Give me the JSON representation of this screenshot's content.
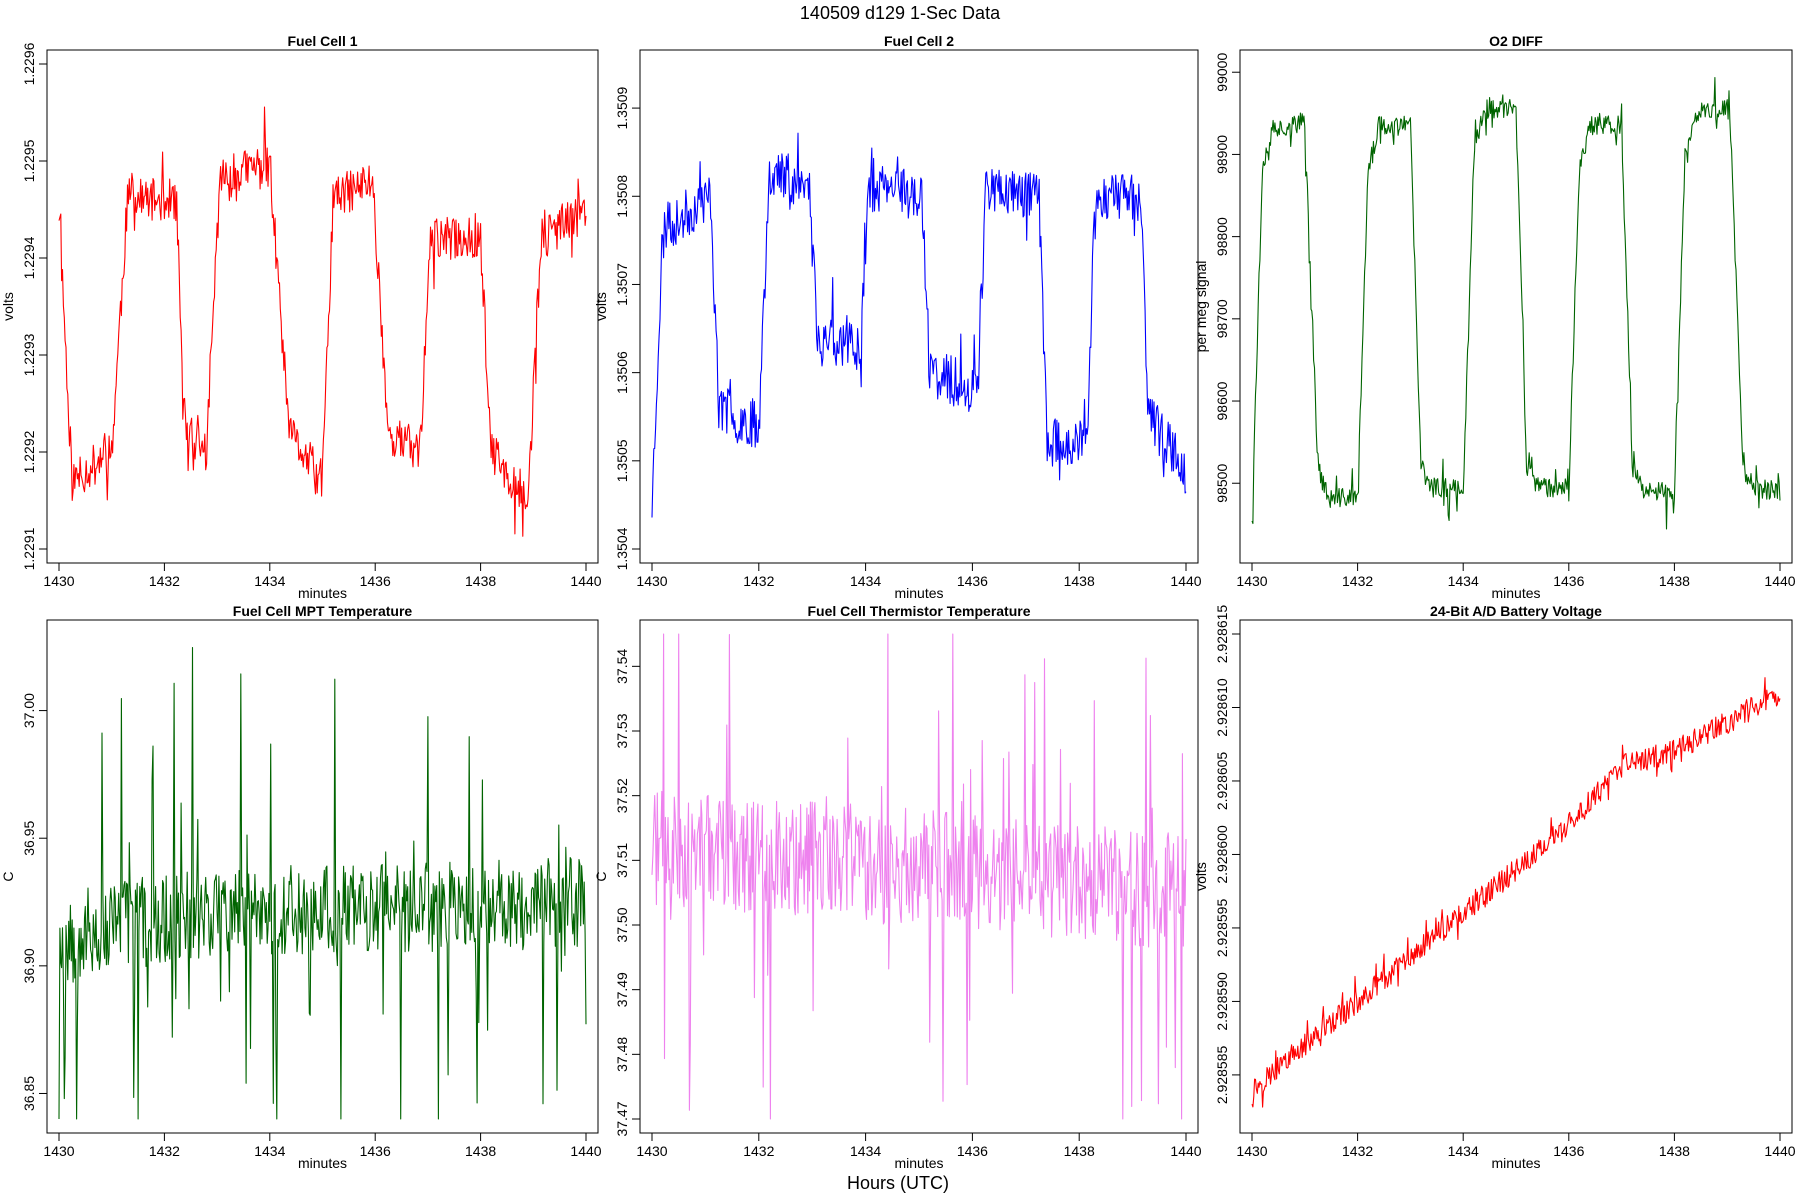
{
  "title": "140509   d129   1-Sec Data",
  "footer_xlabel": "Hours (UTC)",
  "colors": {
    "red": "#ff0000",
    "blue": "#0000ff",
    "green": "#006400",
    "violet": "#ee82ee"
  },
  "chart_data": [
    {
      "type": "line",
      "title": "Fuel Cell 1",
      "xlabel": "minutes",
      "ylabel": "volts",
      "xlim": [
        1430,
        1440
      ],
      "ylim": [
        1.2291,
        1.2296
      ],
      "xticks": [
        1430,
        1432,
        1434,
        1436,
        1438,
        1440
      ],
      "yticks": [
        "1.2291",
        "1.2292",
        "1.2293",
        "1.2294",
        "1.2295",
        "1.2296"
      ],
      "color": "#ff0000",
      "seed": 11,
      "noise": 2.2e-05,
      "spike": 2e-05,
      "levels": [
        [
          1430.0,
          1.22945
        ],
        [
          1430.25,
          1.22917
        ],
        [
          1431.0,
          1.2292
        ],
        [
          1431.3,
          1.22946
        ],
        [
          1432.2,
          1.22946
        ],
        [
          1432.4,
          1.22922
        ],
        [
          1432.8,
          1.2292
        ],
        [
          1433.05,
          1.22948
        ],
        [
          1434.0,
          1.2295
        ],
        [
          1434.35,
          1.22922
        ],
        [
          1435.0,
          1.22917
        ],
        [
          1435.2,
          1.22946
        ],
        [
          1435.95,
          1.22948
        ],
        [
          1436.25,
          1.22922
        ],
        [
          1436.85,
          1.2292
        ],
        [
          1437.05,
          1.22942
        ],
        [
          1438.0,
          1.22942
        ],
        [
          1438.2,
          1.2292
        ],
        [
          1438.9,
          1.22915
        ],
        [
          1439.15,
          1.22942
        ],
        [
          1440.0,
          1.22945
        ]
      ]
    },
    {
      "type": "line",
      "title": "Fuel Cell 2",
      "xlabel": "minutes",
      "ylabel": "volts",
      "xlim": [
        1430,
        1440
      ],
      "ylim": [
        1.3504,
        1.35095
      ],
      "xticks": [
        1430,
        1432,
        1434,
        1436,
        1438,
        1440
      ],
      "yticks": [
        "1.3504",
        "1.3505",
        "1.3506",
        "1.3507",
        "1.3508",
        "1.3509"
      ],
      "color": "#0000ff",
      "seed": 23,
      "noise": 2.8e-05,
      "spike": 2.5e-05,
      "levels": [
        [
          1430.0,
          1.35045
        ],
        [
          1430.2,
          1.35076
        ],
        [
          1431.1,
          1.3508
        ],
        [
          1431.25,
          1.35056
        ],
        [
          1432.0,
          1.35054
        ],
        [
          1432.2,
          1.35083
        ],
        [
          1432.95,
          1.35081
        ],
        [
          1433.1,
          1.35064
        ],
        [
          1433.9,
          1.35063
        ],
        [
          1434.05,
          1.35081
        ],
        [
          1435.05,
          1.3508
        ],
        [
          1435.2,
          1.3506
        ],
        [
          1436.1,
          1.35058
        ],
        [
          1436.25,
          1.35081
        ],
        [
          1437.25,
          1.3508
        ],
        [
          1437.4,
          1.35052
        ],
        [
          1438.15,
          1.35052
        ],
        [
          1438.3,
          1.3508
        ],
        [
          1439.15,
          1.3508
        ],
        [
          1439.3,
          1.35055
        ],
        [
          1440.0,
          1.35049
        ]
      ]
    },
    {
      "type": "line",
      "title": "O2 DIFF",
      "xlabel": "minutes",
      "ylabel": "per meg signal",
      "xlim": [
        1430,
        1440
      ],
      "ylim": [
        98420,
        99010
      ],
      "xticks": [
        1430,
        1432,
        1434,
        1436,
        1438,
        1440
      ],
      "yticks": [
        "98500",
        "98600",
        "98700",
        "98800",
        "98900",
        "99000"
      ],
      "color": "#006400",
      "seed": 37,
      "noise": 12,
      "spike": 20,
      "levels": [
        [
          1430.0,
          98460
        ],
        [
          1430.2,
          98890
        ],
        [
          1430.4,
          98930
        ],
        [
          1431.0,
          98940
        ],
        [
          1431.25,
          98520
        ],
        [
          1431.45,
          98480
        ],
        [
          1432.0,
          98485
        ],
        [
          1432.2,
          98880
        ],
        [
          1432.4,
          98935
        ],
        [
          1433.0,
          98935
        ],
        [
          1433.2,
          98520
        ],
        [
          1433.4,
          98495
        ],
        [
          1434.0,
          98495
        ],
        [
          1434.2,
          98900
        ],
        [
          1434.4,
          98955
        ],
        [
          1435.0,
          98955
        ],
        [
          1435.2,
          98520
        ],
        [
          1435.4,
          98495
        ],
        [
          1436.0,
          98495
        ],
        [
          1436.2,
          98880
        ],
        [
          1436.4,
          98935
        ],
        [
          1437.0,
          98935
        ],
        [
          1437.2,
          98520
        ],
        [
          1437.4,
          98490
        ],
        [
          1438.0,
          98490
        ],
        [
          1438.2,
          98900
        ],
        [
          1438.4,
          98950
        ],
        [
          1439.05,
          98955
        ],
        [
          1439.3,
          98520
        ],
        [
          1439.5,
          98495
        ],
        [
          1440.0,
          98490
        ]
      ]
    },
    {
      "type": "line",
      "title": "Fuel Cell MPT Temperature",
      "xlabel": "minutes",
      "ylabel": "C",
      "xlim": [
        1430,
        1440
      ],
      "ylim": [
        36.84,
        37.03
      ],
      "xticks": [
        1430,
        1432,
        1434,
        1436,
        1438,
        1440
      ],
      "yticks": [
        "36.85",
        "36.90",
        "36.95",
        "37.00"
      ],
      "color": "#006400",
      "seed": 53,
      "noise": 0.018,
      "spike": 0.05,
      "levels": [
        [
          1430.0,
          36.91
        ],
        [
          1431.0,
          36.915
        ],
        [
          1433.0,
          36.922
        ],
        [
          1436.0,
          36.922
        ],
        [
          1440.0,
          36.925
        ]
      ]
    },
    {
      "type": "line",
      "title": "Fuel Cell Thermistor Temperature",
      "xlabel": "minutes",
      "ylabel": "C",
      "xlim": [
        1430,
        1440
      ],
      "ylim": [
        37.47,
        37.545
      ],
      "xticks": [
        1430,
        1432,
        1434,
        1436,
        1438,
        1440
      ],
      "yticks": [
        "37.47",
        "37.48",
        "37.49",
        "37.50",
        "37.51",
        "37.52",
        "37.53",
        "37.54"
      ],
      "color": "#ee82ee",
      "seed": 71,
      "noise": 0.009,
      "spike": 0.022,
      "levels": [
        [
          1430.0,
          37.512
        ],
        [
          1435.0,
          37.509
        ],
        [
          1440.0,
          37.505
        ]
      ]
    },
    {
      "type": "line",
      "title": "24-Bit A/D Battery Voltage",
      "xlabel": "minutes",
      "ylabel": "volts",
      "xlim": [
        1430,
        1440
      ],
      "ylim": [
        2.928582,
        2.928615
      ],
      "xticks": [
        1430,
        1432,
        1434,
        1436,
        1438,
        1440
      ],
      "yticks": [
        "2.928585",
        "2.928590",
        "2.928595",
        "2.928600",
        "2.928605",
        "2.928610",
        "2.928615"
      ],
      "color": "#ff0000",
      "seed": 97,
      "noise": 8e-07,
      "spike": 6e-07,
      "levels": [
        [
          1430.0,
          2.928584
        ],
        [
          1432.0,
          2.92859
        ],
        [
          1434.0,
          2.928596
        ],
        [
          1436.0,
          2.928602
        ],
        [
          1437.0,
          2.928606
        ],
        [
          1438.0,
          2.928607
        ],
        [
          1440.0,
          2.928611
        ]
      ]
    }
  ]
}
